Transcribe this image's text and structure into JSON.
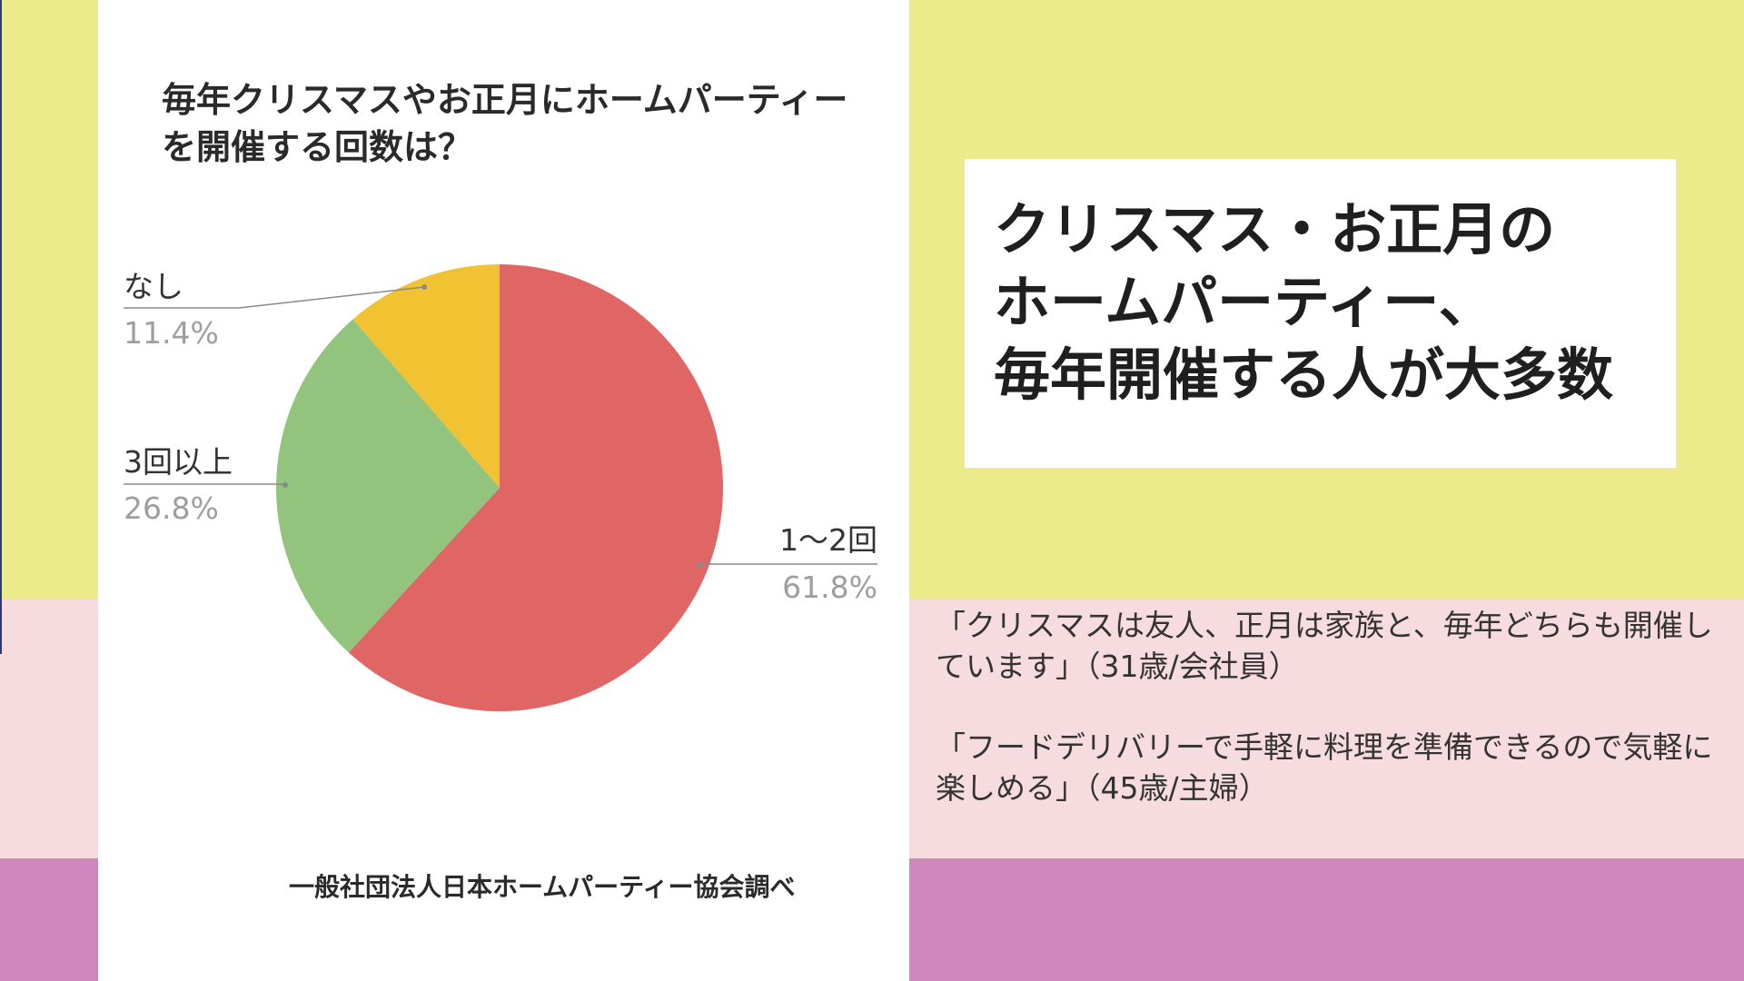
{
  "chart_data": {
    "type": "pie",
    "title": "毎年クリスマスやお正月にホームパーティーを開催する回数は？",
    "categories": [
      "1〜2回",
      "3回以上",
      "なし"
    ],
    "values": [
      61.8,
      26.8,
      11.4
    ],
    "value_labels": [
      "61.8%",
      "26.8%",
      "11.4%"
    ],
    "colors": [
      "#e06666",
      "#93c47d",
      "#f1c232"
    ],
    "source": "一般社団法人日本ホームパーティー協会調べ"
  },
  "headline": {
    "lines": [
      "クリスマス・お正月の",
      "ホームパーティー、",
      "毎年開催する人が大多数"
    ]
  },
  "quotes": [
    "「クリスマスは友人、正月は家族と、毎年どちらも開催しています」（31歳/会社員）",
    "「フードデリバリーで手軽に料理を準備できるので気軽に楽しめる」（45歳/主婦）"
  ],
  "colors": {
    "band_yellow": "#eceb8c",
    "band_pink": "#f7dcdf",
    "band_purple": "#cf87bd"
  }
}
